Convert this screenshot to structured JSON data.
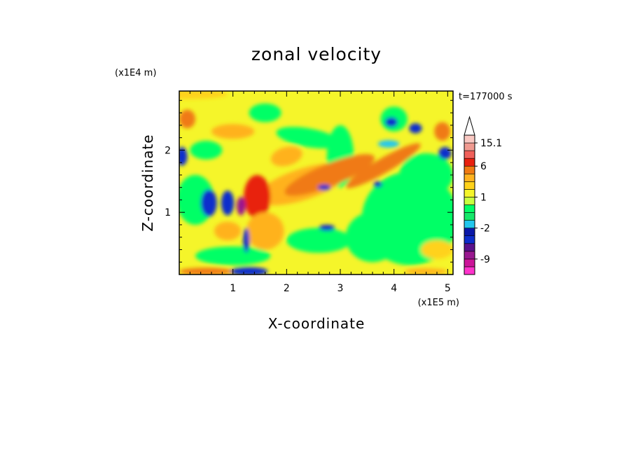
{
  "chart_data": {
    "type": "heatmap",
    "title": "zonal velocity",
    "xlabel": "X-coordinate",
    "ylabel": "Z-coordinate",
    "x_unit": "(x1E5 m)",
    "y_unit": "(x1E4 m)",
    "time_label": "t=177000 s",
    "xlim": [
      0,
      5.1
    ],
    "ylim": [
      0,
      2.95
    ],
    "x_ticks": [
      "1",
      "2",
      "3",
      "4",
      "5"
    ],
    "y_ticks": [
      "1",
      "2"
    ],
    "colorbar": {
      "levels": [
        {
          "lower": -15,
          "color": "#ff33cc"
        },
        {
          "lower": -12,
          "color": "#cc1499"
        },
        {
          "lower": -9,
          "color": "#99188f"
        },
        {
          "lower": -7,
          "color": "#5a128c"
        },
        {
          "lower": -5,
          "color": "#0d2ecc"
        },
        {
          "lower": -3,
          "color": "#0a18a8"
        },
        {
          "lower": -2,
          "color": "#22c7ee"
        },
        {
          "lower": -1,
          "color": "#15e86a"
        },
        {
          "lower": 0,
          "color": "#00ff66"
        },
        {
          "lower": 0.5,
          "color": "#c8ff40"
        },
        {
          "lower": 1,
          "color": "#f5f52a"
        },
        {
          "lower": 2,
          "color": "#ffd21a"
        },
        {
          "lower": 3,
          "color": "#ffb21f"
        },
        {
          "lower": 4,
          "color": "#f07a12"
        },
        {
          "lower": 6,
          "color": "#e8200f"
        },
        {
          "lower": 9,
          "color": "#f0605a"
        },
        {
          "lower": 12,
          "color": "#f09a90"
        },
        {
          "lower": 15.1,
          "color": "#f9c8c2"
        }
      ],
      "tick_labels": [
        "15.1",
        "6",
        "1",
        "-2",
        "-9"
      ],
      "extend": "max"
    }
  }
}
